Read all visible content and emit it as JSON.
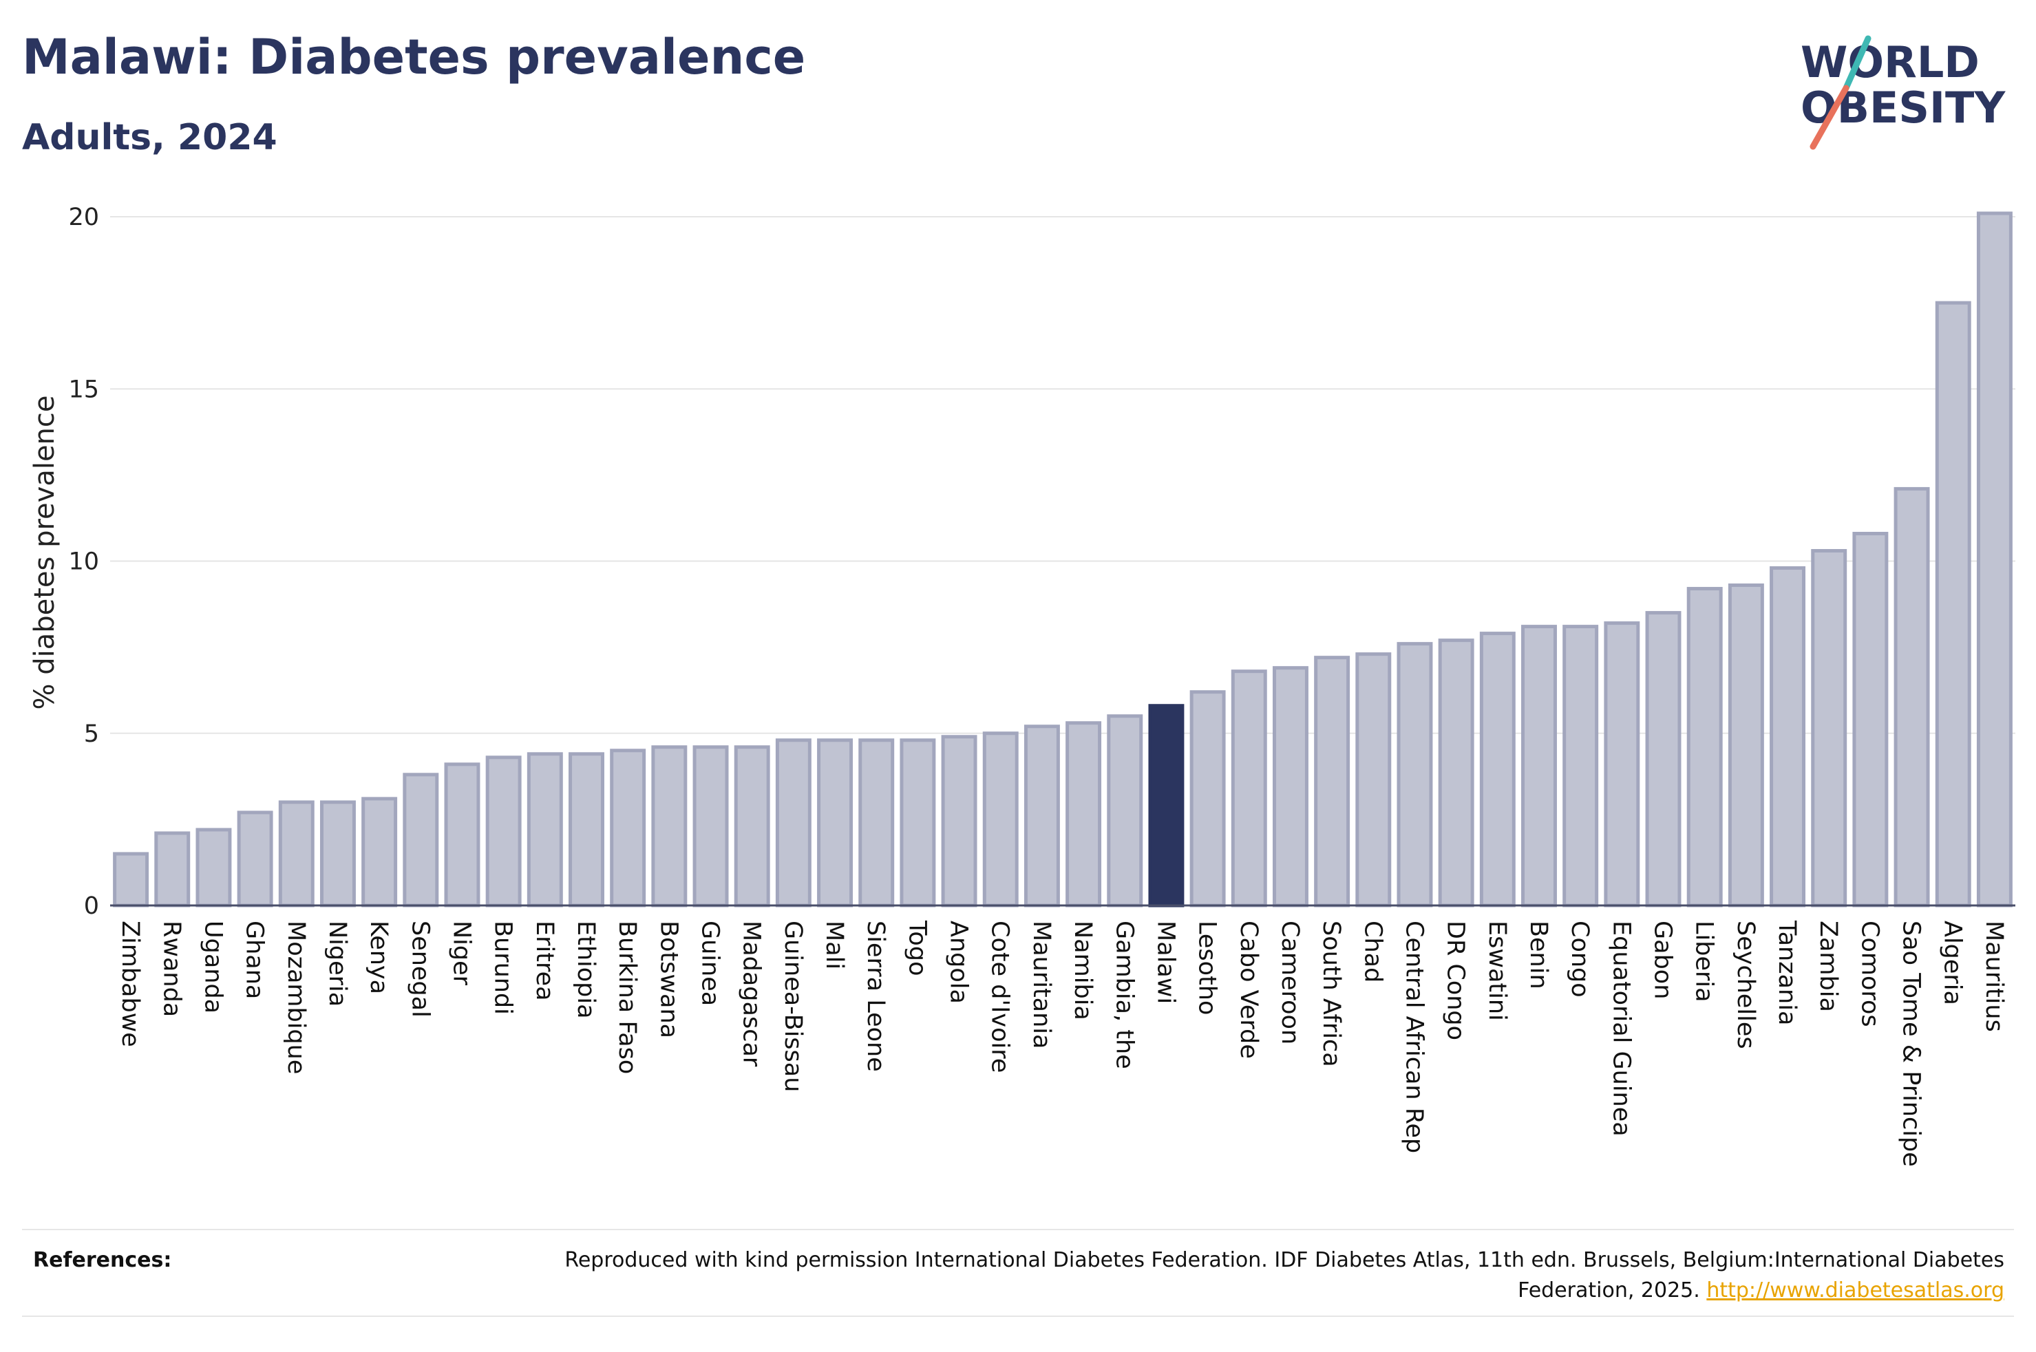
{
  "header": {
    "title": "Malawi: Diabetes prevalence",
    "subtitle": "Adults, 2024"
  },
  "logo": {
    "line1": "WORLD",
    "line2": "OBESITY",
    "accent_teal": "#3fb8b3",
    "accent_coral": "#e8725c",
    "text_color": "#2b355f"
  },
  "chart_data": {
    "type": "bar",
    "ylabel": "% diabetes prevalence",
    "xlabel": "",
    "ylim": [
      0,
      20.5
    ],
    "yticks": [
      0,
      5,
      10,
      15,
      20
    ],
    "grid": true,
    "highlight": "Malawi",
    "bar_color": "#c0c3d2",
    "bar_edge_color": "#a2a6bd",
    "highlight_color": "#2b355f",
    "categories": [
      "Zimbabwe",
      "Rwanda",
      "Uganda",
      "Ghana",
      "Mozambique",
      "Nigeria",
      "Kenya",
      "Senegal",
      "Niger",
      "Burundi",
      "Eritrea",
      "Ethiopia",
      "Burkina Faso",
      "Botswana",
      "Guinea",
      "Madagascar",
      "Guinea-Bissau",
      "Mali",
      "Sierra Leone",
      "Togo",
      "Angola",
      "Cote d'Ivoire",
      "Mauritania",
      "Namibia",
      "Gambia, the",
      "Malawi",
      "Lesotho",
      "Cabo Verde",
      "Cameroon",
      "South Africa",
      "Chad",
      "Central African Rep",
      "DR Congo",
      "Eswatini",
      "Benin",
      "Congo",
      "Equatorial Guinea",
      "Gabon",
      "Liberia",
      "Seychelles",
      "Tanzania",
      "Zambia",
      "Comoros",
      "Sao Tome & Principe",
      "Algeria",
      "Mauritius"
    ],
    "values": [
      1.5,
      2.1,
      2.2,
      2.7,
      3.0,
      3.0,
      3.1,
      3.8,
      4.1,
      4.3,
      4.4,
      4.4,
      4.5,
      4.6,
      4.6,
      4.6,
      4.8,
      4.8,
      4.8,
      4.8,
      4.9,
      5.0,
      5.2,
      5.3,
      5.5,
      5.8,
      6.2,
      6.8,
      6.9,
      7.2,
      7.3,
      7.6,
      7.7,
      7.9,
      8.1,
      8.1,
      8.2,
      8.5,
      9.2,
      9.3,
      9.8,
      10.3,
      10.8,
      12.1,
      17.5,
      20.1
    ]
  },
  "footer": {
    "references_label": "References:",
    "reference_text": "Reproduced with kind permission International Diabetes Federation. IDF Diabetes Atlas, 11th edn. Brussels, Belgium:International Diabetes Federation, 2025.",
    "reference_link": "http://www.diabetesatlas.org"
  }
}
